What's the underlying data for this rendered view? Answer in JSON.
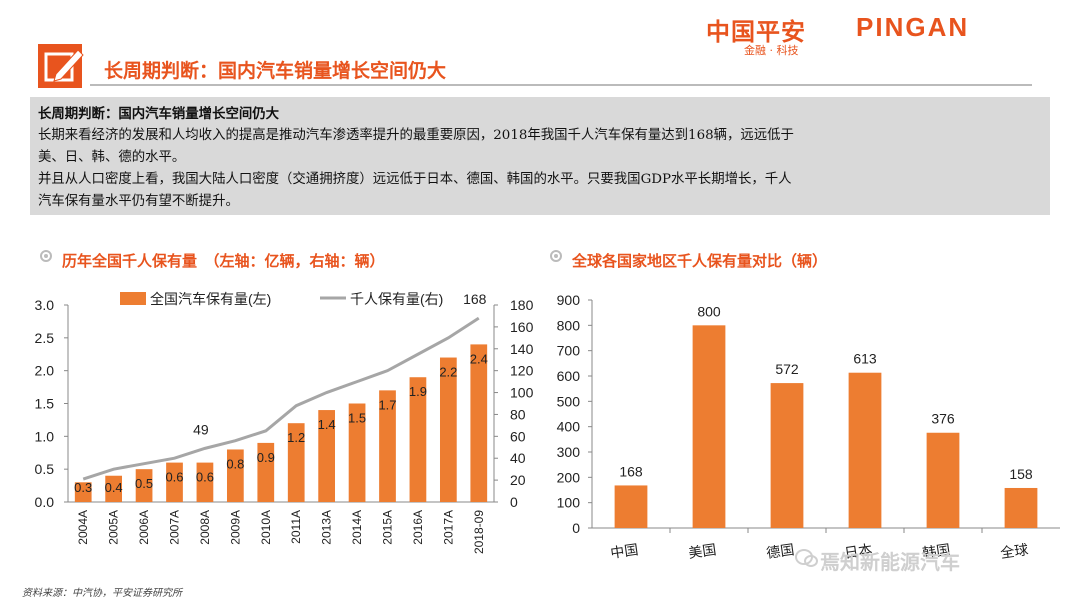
{
  "logo": {
    "cn": "中国平安",
    "en": "PINGAN",
    "sub": "金融 · 科技"
  },
  "header": {
    "title": "长周期判断：国内汽车销量增长空间仍大"
  },
  "summary": {
    "title": "长周期判断：国内汽车销量增长空间仍大",
    "line1": "长期来看经济的发展和人均收入的提高是推动汽车渗透率提升的最重要原因，2018年我国千人汽车保有量达到168辆，远远低于",
    "line2": "美、日、韩、德的水平。",
    "line3": "并且从人口密度上看，我国大陆人口密度（交通拥挤度）远远低于日本、德国、韩国的水平。只要我国GDP水平长期增长，千人",
    "line4": "汽车保有量水平仍有望不断提升。"
  },
  "section_left": {
    "title": "历年全国千人保有量　（左轴：亿辆，右轴：辆）"
  },
  "section_right": {
    "title": "全球各国家地区千人保有量对比（辆）"
  },
  "source": "资料来源：中汽协，平安证券研究所",
  "watermark": "焉知新能源汽车",
  "colors": {
    "accent": "#e8541e",
    "bar": "#ed7d31",
    "line": "#a6a6a6"
  },
  "chart_data": [
    {
      "type": "bar+line",
      "title": "",
      "categories": [
        "2004A",
        "2005A",
        "2006A",
        "2007A",
        "2008A",
        "2009A",
        "2010A",
        "2011A",
        "2013A",
        "2014A",
        "2015A",
        "2016A",
        "2017A",
        "2018-09"
      ],
      "series": [
        {
          "name": "全国汽车保有量(左)",
          "type": "bar",
          "axis": "left",
          "values": [
            0.3,
            0.4,
            0.5,
            0.6,
            0.6,
            0.8,
            0.9,
            1.2,
            1.4,
            1.5,
            1.7,
            1.9,
            2.2,
            2.4
          ],
          "labels": [
            "0.3",
            "0.4",
            "0.5",
            "0.6",
            "0.6",
            "0.8",
            "0.9",
            "1.2",
            "1.4",
            "1.5",
            "1.7",
            "1.9",
            "2.2",
            "2.4"
          ]
        },
        {
          "name": "千人保有量(右)",
          "type": "line",
          "axis": "right",
          "values": [
            21,
            30,
            35,
            40,
            49,
            56,
            65,
            88,
            100,
            110,
            120,
            135,
            150,
            168
          ],
          "annotations": [
            {
              "index": 4,
              "label": "49"
            },
            {
              "index": 13,
              "label": "168"
            }
          ]
        }
      ],
      "ylim_left": [
        0,
        3.0
      ],
      "ylim_right": [
        0,
        180
      ],
      "yticks_left": [
        "0.0",
        "0.5",
        "1.0",
        "1.5",
        "2.0",
        "2.5",
        "3.0"
      ],
      "yticks_right": [
        "0",
        "20",
        "40",
        "60",
        "80",
        "100",
        "120",
        "140",
        "160",
        "180"
      ],
      "legend": "top",
      "grid": false
    },
    {
      "type": "bar",
      "title": "",
      "categories": [
        "中国",
        "美国",
        "德国",
        "日本",
        "韩国",
        "全球"
      ],
      "category_labels": [
        "中国",
        "美国",
        "德国",
        "日本",
        "韩国",
        "全球"
      ],
      "values": [
        168,
        800,
        572,
        613,
        376,
        158
      ],
      "ylim": [
        0,
        900
      ],
      "yticks": [
        "0",
        "100",
        "200",
        "300",
        "400",
        "500",
        "600",
        "700",
        "800",
        "900"
      ],
      "grid": false
    }
  ]
}
